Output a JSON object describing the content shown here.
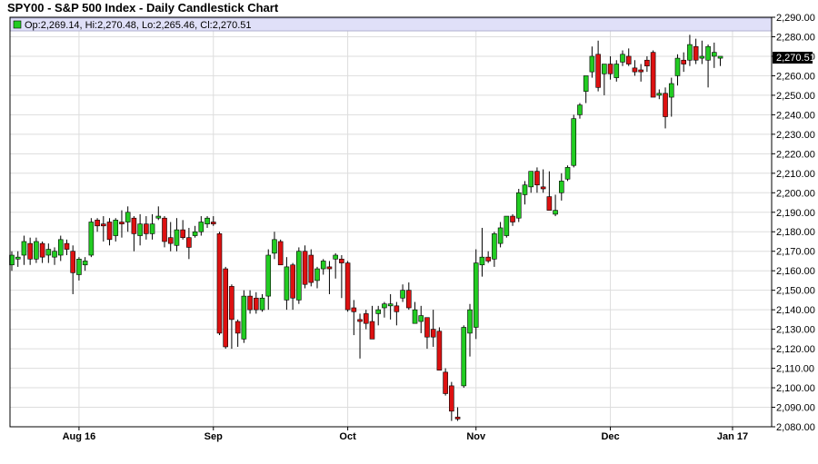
{
  "chart_data": {
    "type": "candlestick",
    "title": "SPY00 - S&P 500 Index - Daily Candlestick Chart",
    "ohlc_label": "Op:2,269.14, Hi:2,270.48, Lo:2,265.46, Cl:2,270.51",
    "last_price_label": "2,270.51",
    "ylim": [
      2080,
      2290
    ],
    "y_ticks": [
      "2,080.00",
      "2,090.00",
      "2,100.00",
      "2,110.00",
      "2,120.00",
      "2,130.00",
      "2,140.00",
      "2,150.00",
      "2,160.00",
      "2,170.00",
      "2,180.00",
      "2,190.00",
      "2,200.00",
      "2,210.00",
      "2,220.00",
      "2,230.00",
      "2,240.00",
      "2,250.00",
      "2,260.00",
      "2,270.00",
      "2,280.00",
      "2,290.00"
    ],
    "x_labels": [
      {
        "label": "Aug 16",
        "index": 11
      },
      {
        "label": "Sep",
        "index": 33
      },
      {
        "label": "Oct",
        "index": 55
      },
      {
        "label": "Nov",
        "index": 76
      },
      {
        "label": "Dec",
        "index": 98
      },
      {
        "label": "Jan 17",
        "index": 118
      }
    ],
    "grid": true,
    "colors": {
      "up": "#22cc22",
      "down": "#dd1111",
      "wick": "#000000",
      "ohlc_bar": "#e0e0f8",
      "grid": "#dddddd"
    },
    "candles": [
      {
        "o": 2163,
        "h": 2170,
        "l": 2160,
        "c": 2168
      },
      {
        "o": 2166,
        "h": 2170,
        "l": 2162,
        "c": 2167
      },
      {
        "o": 2168,
        "h": 2178,
        "l": 2163,
        "c": 2175
      },
      {
        "o": 2174,
        "h": 2177,
        "l": 2163,
        "c": 2166
      },
      {
        "o": 2166,
        "h": 2177,
        "l": 2164,
        "c": 2175
      },
      {
        "o": 2174,
        "h": 2175,
        "l": 2164,
        "c": 2167
      },
      {
        "o": 2168,
        "h": 2174,
        "l": 2164,
        "c": 2171
      },
      {
        "o": 2167,
        "h": 2172,
        "l": 2163,
        "c": 2170
      },
      {
        "o": 2168,
        "h": 2178,
        "l": 2165,
        "c": 2176
      },
      {
        "o": 2174,
        "h": 2176,
        "l": 2168,
        "c": 2171
      },
      {
        "o": 2170,
        "h": 2173,
        "l": 2148,
        "c": 2159
      },
      {
        "o": 2158,
        "h": 2167,
        "l": 2155,
        "c": 2166
      },
      {
        "o": 2163,
        "h": 2167,
        "l": 2160,
        "c": 2165
      },
      {
        "o": 2168,
        "h": 2187,
        "l": 2167,
        "c": 2185
      },
      {
        "o": 2186,
        "h": 2187,
        "l": 2180,
        "c": 2183
      },
      {
        "o": 2184,
        "h": 2188,
        "l": 2175,
        "c": 2183
      },
      {
        "o": 2185,
        "h": 2187,
        "l": 2173,
        "c": 2176
      },
      {
        "o": 2178,
        "h": 2187,
        "l": 2175,
        "c": 2186
      },
      {
        "o": 2185,
        "h": 2191,
        "l": 2177,
        "c": 2184
      },
      {
        "o": 2185,
        "h": 2193,
        "l": 2180,
        "c": 2190
      },
      {
        "o": 2187,
        "h": 2188,
        "l": 2170,
        "c": 2179
      },
      {
        "o": 2178,
        "h": 2189,
        "l": 2173,
        "c": 2184
      },
      {
        "o": 2184,
        "h": 2188,
        "l": 2176,
        "c": 2179
      },
      {
        "o": 2179,
        "h": 2189,
        "l": 2176,
        "c": 2184
      },
      {
        "o": 2187,
        "h": 2193,
        "l": 2186,
        "c": 2188
      },
      {
        "o": 2187,
        "h": 2188,
        "l": 2172,
        "c": 2175
      },
      {
        "o": 2177,
        "h": 2185,
        "l": 2170,
        "c": 2174
      },
      {
        "o": 2173,
        "h": 2187,
        "l": 2170,
        "c": 2181
      },
      {
        "o": 2181,
        "h": 2186,
        "l": 2176,
        "c": 2177
      },
      {
        "o": 2177,
        "h": 2182,
        "l": 2166,
        "c": 2172
      },
      {
        "o": 2178,
        "h": 2183,
        "l": 2177,
        "c": 2180
      },
      {
        "o": 2180,
        "h": 2188,
        "l": 2178,
        "c": 2185
      },
      {
        "o": 2184,
        "h": 2188,
        "l": 2182,
        "c": 2187
      },
      {
        "o": 2185,
        "h": 2188,
        "l": 2183,
        "c": 2184
      },
      {
        "o": 2179,
        "h": 2180,
        "l": 2127,
        "c": 2128
      },
      {
        "o": 2161,
        "h": 2162,
        "l": 2120,
        "c": 2121
      },
      {
        "o": 2152,
        "h": 2153,
        "l": 2120,
        "c": 2135
      },
      {
        "o": 2134,
        "h": 2135,
        "l": 2121,
        "c": 2128
      },
      {
        "o": 2125,
        "h": 2150,
        "l": 2123,
        "c": 2147
      },
      {
        "o": 2147,
        "h": 2150,
        "l": 2138,
        "c": 2140
      },
      {
        "o": 2146,
        "h": 2149,
        "l": 2138,
        "c": 2140
      },
      {
        "o": 2140,
        "h": 2148,
        "l": 2139,
        "c": 2146
      },
      {
        "o": 2147,
        "h": 2171,
        "l": 2140,
        "c": 2168
      },
      {
        "o": 2169,
        "h": 2180,
        "l": 2166,
        "c": 2176
      },
      {
        "o": 2175,
        "h": 2176,
        "l": 2165,
        "c": 2163
      },
      {
        "o": 2145,
        "h": 2167,
        "l": 2140,
        "c": 2162
      },
      {
        "o": 2163,
        "h": 2164,
        "l": 2140,
        "c": 2146
      },
      {
        "o": 2145,
        "h": 2172,
        "l": 2143,
        "c": 2170
      },
      {
        "o": 2170,
        "h": 2173,
        "l": 2151,
        "c": 2153
      },
      {
        "o": 2168,
        "h": 2171,
        "l": 2152,
        "c": 2154
      },
      {
        "o": 2155,
        "h": 2162,
        "l": 2151,
        "c": 2161
      },
      {
        "o": 2161,
        "h": 2166,
        "l": 2158,
        "c": 2165
      },
      {
        "o": 2162,
        "h": 2165,
        "l": 2148,
        "c": 2161
      },
      {
        "o": 2166,
        "h": 2169,
        "l": 2156,
        "c": 2168
      },
      {
        "o": 2166,
        "h": 2168,
        "l": 2146,
        "c": 2164
      },
      {
        "o": 2164,
        "h": 2165,
        "l": 2139,
        "c": 2140
      },
      {
        "o": 2141,
        "h": 2145,
        "l": 2127,
        "c": 2139
      },
      {
        "o": 2135,
        "h": 2138,
        "l": 2115,
        "c": 2134
      },
      {
        "o": 2138,
        "h": 2140,
        "l": 2130,
        "c": 2133
      },
      {
        "o": 2134,
        "h": 2142,
        "l": 2126,
        "c": 2125
      },
      {
        "o": 2138,
        "h": 2142,
        "l": 2132,
        "c": 2140
      },
      {
        "o": 2141,
        "h": 2144,
        "l": 2136,
        "c": 2143
      },
      {
        "o": 2142,
        "h": 2148,
        "l": 2135,
        "c": 2143
      },
      {
        "o": 2142,
        "h": 2144,
        "l": 2132,
        "c": 2139
      },
      {
        "o": 2146,
        "h": 2153,
        "l": 2144,
        "c": 2150
      },
      {
        "o": 2150,
        "h": 2154,
        "l": 2140,
        "c": 2141
      },
      {
        "o": 2133,
        "h": 2144,
        "l": 2133,
        "c": 2140
      },
      {
        "o": 2134,
        "h": 2142,
        "l": 2128,
        "c": 2137
      },
      {
        "o": 2136,
        "h": 2136,
        "l": 2120,
        "c": 2126
      },
      {
        "o": 2130,
        "h": 2140,
        "l": 2121,
        "c": 2126
      },
      {
        "o": 2129,
        "h": 2131,
        "l": 2111,
        "c": 2109
      },
      {
        "o": 2108,
        "h": 2110,
        "l": 2096,
        "c": 2097
      },
      {
        "o": 2101,
        "h": 2103,
        "l": 2083,
        "c": 2088
      },
      {
        "o": 2085,
        "h": 2090,
        "l": 2083,
        "c": 2084
      },
      {
        "o": 2101,
        "h": 2132,
        "l": 2100,
        "c": 2131
      },
      {
        "o": 2128,
        "h": 2143,
        "l": 2116,
        "c": 2140
      },
      {
        "o": 2131,
        "h": 2171,
        "l": 2125,
        "c": 2164
      },
      {
        "o": 2163,
        "h": 2182,
        "l": 2157,
        "c": 2167
      },
      {
        "o": 2167,
        "h": 2170,
        "l": 2164,
        "c": 2165
      },
      {
        "o": 2166,
        "h": 2180,
        "l": 2162,
        "c": 2179
      },
      {
        "o": 2174,
        "h": 2185,
        "l": 2172,
        "c": 2182
      },
      {
        "o": 2178,
        "h": 2188,
        "l": 2177,
        "c": 2188
      },
      {
        "o": 2188,
        "h": 2189,
        "l": 2183,
        "c": 2185
      },
      {
        "o": 2187,
        "h": 2202,
        "l": 2185,
        "c": 2200
      },
      {
        "o": 2199,
        "h": 2206,
        "l": 2194,
        "c": 2204
      },
      {
        "o": 2203,
        "h": 2210,
        "l": 2200,
        "c": 2211
      },
      {
        "o": 2211,
        "h": 2213,
        "l": 2200,
        "c": 2204
      },
      {
        "o": 2203,
        "h": 2212,
        "l": 2200,
        "c": 2202
      },
      {
        "o": 2198,
        "h": 2211,
        "l": 2193,
        "c": 2191
      },
      {
        "o": 2189,
        "h": 2199,
        "l": 2188,
        "c": 2191
      },
      {
        "o": 2200,
        "h": 2210,
        "l": 2196,
        "c": 2206
      },
      {
        "o": 2207,
        "h": 2214,
        "l": 2206,
        "c": 2213
      },
      {
        "o": 2214,
        "h": 2240,
        "l": 2213,
        "c": 2238
      },
      {
        "o": 2240,
        "h": 2246,
        "l": 2238,
        "c": 2245
      },
      {
        "o": 2252,
        "h": 2259,
        "l": 2246,
        "c": 2260
      },
      {
        "o": 2262,
        "h": 2275,
        "l": 2259,
        "c": 2270
      },
      {
        "o": 2271,
        "h": 2278,
        "l": 2252,
        "c": 2254
      },
      {
        "o": 2261,
        "h": 2266,
        "l": 2250,
        "c": 2266
      },
      {
        "o": 2266,
        "h": 2270,
        "l": 2258,
        "c": 2261
      },
      {
        "o": 2259,
        "h": 2268,
        "l": 2257,
        "c": 2266
      },
      {
        "o": 2267,
        "h": 2273,
        "l": 2265,
        "c": 2271
      },
      {
        "o": 2270,
        "h": 2274,
        "l": 2265,
        "c": 2266
      },
      {
        "o": 2264,
        "h": 2268,
        "l": 2260,
        "c": 2262
      },
      {
        "o": 2263,
        "h": 2266,
        "l": 2257,
        "c": 2262
      },
      {
        "o": 2268,
        "h": 2270,
        "l": 2262,
        "c": 2265
      },
      {
        "o": 2272,
        "h": 2273,
        "l": 2249,
        "c": 2249
      },
      {
        "o": 2250,
        "h": 2253,
        "l": 2248,
        "c": 2251
      },
      {
        "o": 2251,
        "h": 2254,
        "l": 2233,
        "c": 2239
      },
      {
        "o": 2249,
        "h": 2259,
        "l": 2239,
        "c": 2256
      },
      {
        "o": 2260,
        "h": 2271,
        "l": 2255,
        "c": 2269
      },
      {
        "o": 2268,
        "h": 2272,
        "l": 2262,
        "c": 2266
      },
      {
        "o": 2268,
        "h": 2281,
        "l": 2265,
        "c": 2276
      },
      {
        "o": 2275,
        "h": 2279,
        "l": 2266,
        "c": 2268
      },
      {
        "o": 2269,
        "h": 2278,
        "l": 2266,
        "c": 2270
      },
      {
        "o": 2268,
        "h": 2276,
        "l": 2254,
        "c": 2275
      },
      {
        "o": 2270,
        "h": 2277,
        "l": 2264,
        "c": 2272
      },
      {
        "o": 2269,
        "h": 2270,
        "l": 2265,
        "c": 2270
      }
    ]
  }
}
